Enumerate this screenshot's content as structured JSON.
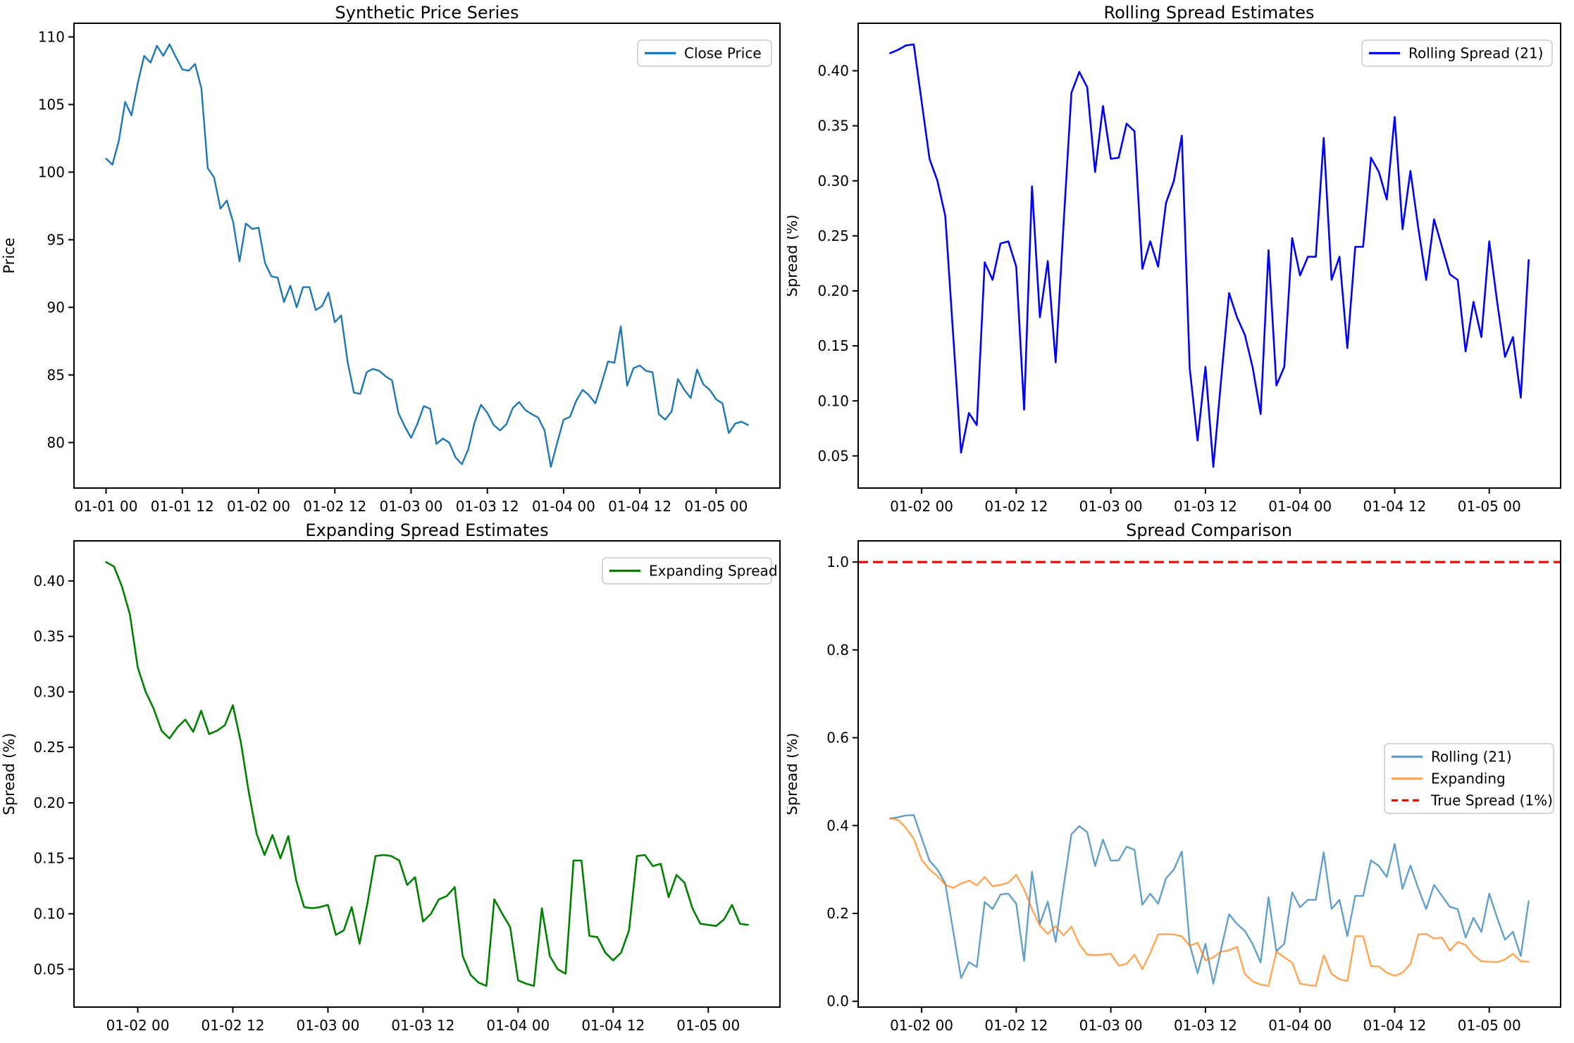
{
  "figure": {
    "background": "#ffffff",
    "spine_color": "#000000",
    "tick_color": "#000000"
  },
  "chart_data": [
    {
      "id": "price",
      "type": "line",
      "title": "Synthetic Price Series",
      "xlabel": "",
      "ylabel": "Price",
      "grid": false,
      "legend_entries": [
        {
          "label": "Close Price",
          "color": "#1f77b4",
          "dash": false,
          "alpha": 1
        }
      ],
      "x_tick_hours": [
        0,
        12,
        24,
        36,
        48,
        60,
        72,
        84,
        96
      ],
      "x_tick_labels": [
        "01-01 00",
        "01-01 12",
        "01-02 00",
        "01-02 12",
        "01-03 00",
        "01-03 12",
        "01-04 00",
        "01-04 12",
        "01-05 00"
      ],
      "y_ticks": [
        80,
        85,
        90,
        95,
        100,
        105,
        110
      ],
      "y_tick_labels": [
        "80",
        "85",
        "90",
        "95",
        "100",
        "105",
        "110"
      ],
      "series": [
        {
          "name": "Close Price",
          "color": "#1f77b4",
          "alpha": 1,
          "width": 2.4,
          "dash": false,
          "start_hour": 0,
          "values": [
            101.0,
            100.55,
            102.3,
            105.2,
            104.2,
            106.6,
            108.6,
            108.1,
            109.35,
            108.6,
            109.45,
            108.5,
            107.6,
            107.5,
            108.0,
            106.2,
            100.3,
            99.6,
            97.3,
            97.9,
            96.3,
            93.4,
            96.2,
            95.8,
            95.9,
            93.3,
            92.3,
            92.2,
            90.4,
            91.6,
            90.0,
            91.5,
            91.5,
            89.8,
            90.1,
            91.1,
            88.9,
            89.4,
            86.0,
            83.7,
            83.6,
            85.2,
            85.45,
            85.3,
            84.9,
            84.6,
            82.2,
            81.2,
            80.35,
            81.4,
            82.7,
            82.5,
            79.9,
            80.3,
            80.0,
            78.9,
            78.4,
            79.5,
            81.5,
            82.8,
            82.2,
            81.3,
            80.9,
            81.35,
            82.55,
            83.0,
            82.4,
            82.1,
            81.85,
            80.9,
            78.2,
            80.0,
            81.7,
            81.9,
            83.1,
            83.9,
            83.5,
            82.9,
            84.4,
            86.0,
            85.9,
            88.6,
            84.2,
            85.5,
            85.7,
            85.3,
            85.2,
            82.1,
            81.7,
            82.3,
            84.7,
            83.9,
            83.3,
            85.4,
            84.3,
            83.9,
            83.2,
            82.9,
            80.7,
            81.4,
            81.55,
            81.3
          ]
        }
      ]
    },
    {
      "id": "rolling",
      "type": "line",
      "title": "Rolling Spread Estimates",
      "xlabel": "",
      "ylabel": "Spread (%)",
      "grid": false,
      "legend_entries": [
        {
          "label": "Rolling Spread (21)",
          "color": "#0000ff",
          "dash": false,
          "alpha": 1
        }
      ],
      "x_tick_hours": [
        24,
        36,
        48,
        60,
        72,
        84,
        96
      ],
      "x_tick_labels": [
        "01-02 00",
        "01-02 12",
        "01-03 00",
        "01-03 12",
        "01-04 00",
        "01-04 12",
        "01-05 00"
      ],
      "y_ticks": [
        0.05,
        0.1,
        0.15,
        0.2,
        0.25,
        0.3,
        0.35,
        0.4
      ],
      "y_tick_labels": [
        "0.05",
        "0.10",
        "0.15",
        "0.20",
        "0.25",
        "0.30",
        "0.35",
        "0.40"
      ],
      "series": [
        {
          "name": "Rolling Spread (21)",
          "color": "#0000ff",
          "alpha": 1,
          "width": 2.6,
          "dash": false,
          "start_hour": 20,
          "values": [
            0.416,
            0.419,
            0.423,
            0.424,
            0.372,
            0.32,
            0.3,
            0.268,
            0.16,
            0.053,
            0.089,
            0.078,
            0.226,
            0.21,
            0.243,
            0.245,
            0.222,
            0.092,
            0.295,
            0.176,
            0.227,
            0.135,
            0.26,
            0.38,
            0.399,
            0.385,
            0.308,
            0.368,
            0.32,
            0.321,
            0.352,
            0.345,
            0.22,
            0.245,
            0.222,
            0.28,
            0.3,
            0.341,
            0.13,
            0.064,
            0.131,
            0.04,
            0.12,
            0.198,
            0.176,
            0.16,
            0.13,
            0.088,
            0.237,
            0.114,
            0.131,
            0.248,
            0.214,
            0.231,
            0.231,
            0.339,
            0.21,
            0.231,
            0.148,
            0.24,
            0.24,
            0.321,
            0.308,
            0.283,
            0.358,
            0.256,
            0.309,
            0.257,
            0.21,
            0.265,
            0.24,
            0.215,
            0.21,
            0.145,
            0.19,
            0.158,
            0.245,
            0.19,
            0.14,
            0.158,
            0.103,
            0.228
          ]
        }
      ]
    },
    {
      "id": "expanding",
      "type": "line",
      "title": "Expanding Spread Estimates",
      "xlabel": "",
      "ylabel": "Spread (%)",
      "grid": false,
      "legend_entries": [
        {
          "label": "Expanding Spread",
          "color": "#008000",
          "dash": false,
          "alpha": 1
        }
      ],
      "x_tick_hours": [
        24,
        36,
        48,
        60,
        72,
        84,
        96
      ],
      "x_tick_labels": [
        "01-02 00",
        "01-02 12",
        "01-03 00",
        "01-03 12",
        "01-04 00",
        "01-04 12",
        "01-05 00"
      ],
      "y_ticks": [
        0.05,
        0.1,
        0.15,
        0.2,
        0.25,
        0.3,
        0.35,
        0.4
      ],
      "y_tick_labels": [
        "0.05",
        "0.10",
        "0.15",
        "0.20",
        "0.25",
        "0.30",
        "0.35",
        "0.40"
      ],
      "series": [
        {
          "name": "Expanding Spread",
          "color": "#008000",
          "alpha": 1,
          "width": 2.6,
          "dash": false,
          "start_hour": 20,
          "values": [
            0.417,
            0.413,
            0.395,
            0.37,
            0.322,
            0.3,
            0.285,
            0.265,
            0.258,
            0.268,
            0.275,
            0.264,
            0.283,
            0.262,
            0.265,
            0.27,
            0.288,
            0.255,
            0.21,
            0.172,
            0.153,
            0.171,
            0.15,
            0.17,
            0.13,
            0.106,
            0.105,
            0.106,
            0.108,
            0.081,
            0.085,
            0.106,
            0.073,
            0.11,
            0.152,
            0.153,
            0.152,
            0.148,
            0.126,
            0.133,
            0.093,
            0.1,
            0.113,
            0.116,
            0.124,
            0.062,
            0.045,
            0.038,
            0.035,
            0.113,
            0.1,
            0.088,
            0.04,
            0.037,
            0.035,
            0.105,
            0.062,
            0.05,
            0.046,
            0.148,
            0.148,
            0.08,
            0.079,
            0.065,
            0.058,
            0.065,
            0.085,
            0.152,
            0.153,
            0.143,
            0.145,
            0.115,
            0.135,
            0.128,
            0.105,
            0.091,
            0.09,
            0.089,
            0.095,
            0.108,
            0.091,
            0.09
          ]
        }
      ]
    },
    {
      "id": "comparison",
      "type": "line",
      "title": "Spread Comparison",
      "xlabel": "",
      "ylabel": "Spread (%)",
      "grid": false,
      "legend_entries": [
        {
          "label": "Rolling (21)",
          "color": "#1f77b4",
          "dash": false,
          "alpha": 0.7
        },
        {
          "label": "Expanding",
          "color": "#ff7f0e",
          "dash": false,
          "alpha": 0.7
        },
        {
          "label": "True Spread (1%)",
          "color": "#ff0000",
          "dash": true,
          "alpha": 1
        }
      ],
      "x_tick_hours": [
        24,
        36,
        48,
        60,
        72,
        84,
        96
      ],
      "x_tick_labels": [
        "01-02 00",
        "01-02 12",
        "01-03 00",
        "01-03 12",
        "01-04 00",
        "01-04 12",
        "01-05 00"
      ],
      "y_ticks": [
        0.0,
        0.2,
        0.4,
        0.6,
        0.8,
        1.0
      ],
      "y_tick_labels": [
        "0.0",
        "0.2",
        "0.4",
        "0.6",
        "0.8",
        "1.0"
      ],
      "series": [
        {
          "name": "Rolling (21)",
          "color": "#1f77b4",
          "alpha": 0.7,
          "width": 2.4,
          "dash": false,
          "start_hour": 20,
          "values": [
            0.416,
            0.419,
            0.423,
            0.424,
            0.372,
            0.32,
            0.3,
            0.268,
            0.16,
            0.053,
            0.089,
            0.078,
            0.226,
            0.21,
            0.243,
            0.245,
            0.222,
            0.092,
            0.295,
            0.176,
            0.227,
            0.135,
            0.26,
            0.38,
            0.399,
            0.385,
            0.308,
            0.368,
            0.32,
            0.321,
            0.352,
            0.345,
            0.22,
            0.245,
            0.222,
            0.28,
            0.3,
            0.341,
            0.13,
            0.064,
            0.131,
            0.04,
            0.12,
            0.198,
            0.176,
            0.16,
            0.13,
            0.088,
            0.237,
            0.114,
            0.131,
            0.248,
            0.214,
            0.231,
            0.231,
            0.339,
            0.21,
            0.231,
            0.148,
            0.24,
            0.24,
            0.321,
            0.308,
            0.283,
            0.358,
            0.256,
            0.309,
            0.257,
            0.21,
            0.265,
            0.24,
            0.215,
            0.21,
            0.145,
            0.19,
            0.158,
            0.245,
            0.19,
            0.14,
            0.158,
            0.103,
            0.228
          ]
        },
        {
          "name": "Expanding",
          "color": "#ff7f0e",
          "alpha": 0.7,
          "width": 2.4,
          "dash": false,
          "start_hour": 20,
          "values": [
            0.417,
            0.413,
            0.395,
            0.37,
            0.322,
            0.3,
            0.285,
            0.265,
            0.258,
            0.268,
            0.275,
            0.264,
            0.283,
            0.262,
            0.265,
            0.27,
            0.288,
            0.255,
            0.21,
            0.172,
            0.153,
            0.171,
            0.15,
            0.17,
            0.13,
            0.106,
            0.105,
            0.106,
            0.108,
            0.081,
            0.085,
            0.106,
            0.073,
            0.11,
            0.152,
            0.153,
            0.152,
            0.148,
            0.126,
            0.133,
            0.093,
            0.1,
            0.113,
            0.116,
            0.124,
            0.062,
            0.045,
            0.038,
            0.035,
            0.113,
            0.1,
            0.088,
            0.04,
            0.037,
            0.035,
            0.105,
            0.062,
            0.05,
            0.046,
            0.148,
            0.148,
            0.08,
            0.079,
            0.065,
            0.058,
            0.065,
            0.085,
            0.152,
            0.153,
            0.143,
            0.145,
            0.115,
            0.135,
            0.128,
            0.105,
            0.091,
            0.09,
            0.089,
            0.095,
            0.108,
            0.091,
            0.09
          ]
        },
        {
          "name": "True Spread (1%)",
          "color": "#ff0000",
          "alpha": 1,
          "width": 3.2,
          "dash": true,
          "const": 1.0
        }
      ]
    }
  ]
}
